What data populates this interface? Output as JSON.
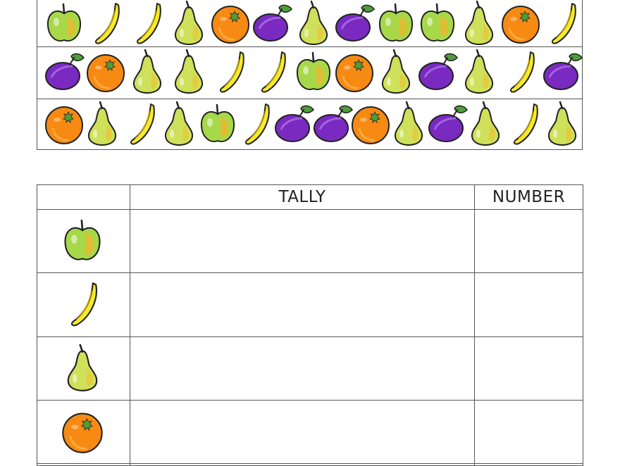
{
  "colors": {
    "apple": "#a6d84a",
    "banana": "#f7ea2a",
    "pear": "#cfe05a",
    "orange": "#f78a12",
    "plum": "#7a2ac0",
    "leaf": "#4f9e3a",
    "border": "#555555"
  },
  "fruit_rows": [
    [
      "apple",
      "banana",
      "banana",
      "pear",
      "orange",
      "plum",
      "pear",
      "plum",
      "apple",
      "apple",
      "pear",
      "orange",
      "banana"
    ],
    [
      "plum",
      "orange",
      "pear",
      "pear",
      "banana",
      "banana",
      "apple",
      "orange",
      "pear",
      "plum",
      "pear",
      "banana",
      "plum"
    ],
    [
      "orange",
      "pear",
      "banana",
      "pear",
      "apple",
      "banana",
      "plum",
      "plum",
      "orange",
      "pear",
      "plum",
      "pear",
      "banana",
      "pear"
    ]
  ],
  "tally": {
    "headers": [
      "",
      "TALLY",
      "NUMBER"
    ],
    "rows": [
      {
        "fruit": "apple-icon",
        "tally": "",
        "number": ""
      },
      {
        "fruit": "banana-icon",
        "tally": "",
        "number": ""
      },
      {
        "fruit": "pear-icon",
        "tally": "",
        "number": ""
      },
      {
        "fruit": "orange-icon",
        "tally": "",
        "number": ""
      }
    ]
  }
}
